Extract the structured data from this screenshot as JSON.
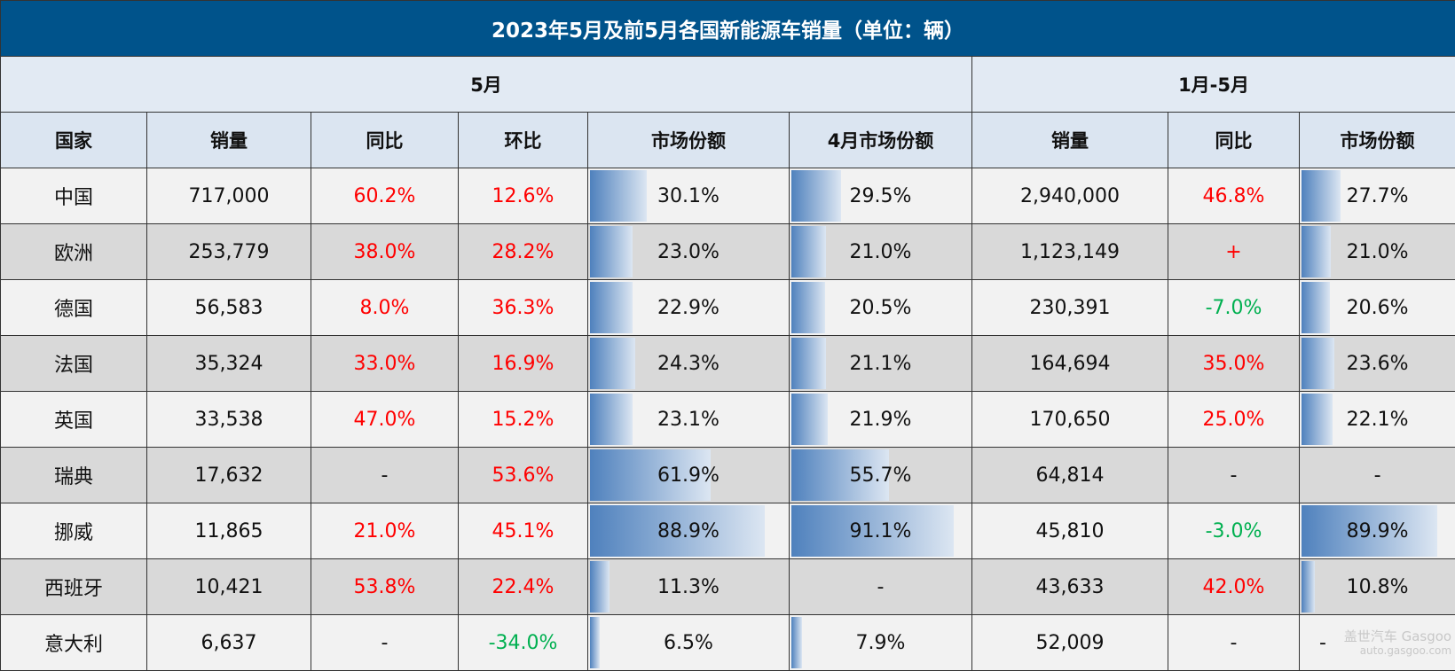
{
  "title": "2023年5月及前5月各国新能源车销量（单位：辆）",
  "group_headers": {
    "may": "5月",
    "ytd": "1月-5月"
  },
  "columns": [
    "国家",
    "销量",
    "同比",
    "环比",
    "市场份额",
    "4月市场份额",
    "销量",
    "同比",
    "市场份额"
  ],
  "colors": {
    "header_bg": "#00538b",
    "positive": "#ff0000",
    "negative": "#00b050",
    "bar_start": "#4f81bd",
    "bar_end": "#dce6f2"
  },
  "rows": [
    {
      "country": "中国",
      "sales": "717,000",
      "yoy": "60.2%",
      "mom": "12.6%",
      "share": "30.1%",
      "apr_share": "29.5%",
      "ytd_sales": "2,940,000",
      "ytd_yoy": "46.8%",
      "ytd_share": "27.7%"
    },
    {
      "country": "欧洲",
      "sales": "253,779",
      "yoy": "38.0%",
      "mom": "28.2%",
      "share": "23.0%",
      "apr_share": "21.0%",
      "ytd_sales": "1,123,149",
      "ytd_yoy": "+",
      "ytd_share": "21.0%"
    },
    {
      "country": "德国",
      "sales": "56,583",
      "yoy": "8.0%",
      "mom": "36.3%",
      "share": "22.9%",
      "apr_share": "20.5%",
      "ytd_sales": "230,391",
      "ytd_yoy": "-7.0%",
      "ytd_share": "20.6%"
    },
    {
      "country": "法国",
      "sales": "35,324",
      "yoy": "33.0%",
      "mom": "16.9%",
      "share": "24.3%",
      "apr_share": "21.1%",
      "ytd_sales": "164,694",
      "ytd_yoy": "35.0%",
      "ytd_share": "23.6%"
    },
    {
      "country": "英国",
      "sales": "33,538",
      "yoy": "47.0%",
      "mom": "15.2%",
      "share": "23.1%",
      "apr_share": "21.9%",
      "ytd_sales": "170,650",
      "ytd_yoy": "25.0%",
      "ytd_share": "22.1%"
    },
    {
      "country": "瑞典",
      "sales": "17,632",
      "yoy": "-",
      "mom": "53.6%",
      "share": "61.9%",
      "apr_share": "55.7%",
      "ytd_sales": "64,814",
      "ytd_yoy": "-",
      "ytd_share": "-"
    },
    {
      "country": "挪威",
      "sales": "11,865",
      "yoy": "21.0%",
      "mom": "45.1%",
      "share": "88.9%",
      "apr_share": "91.1%",
      "ytd_sales": "45,810",
      "ytd_yoy": "-3.0%",
      "ytd_share": "89.9%"
    },
    {
      "country": "西班牙",
      "sales": "10,421",
      "yoy": "53.8%",
      "mom": "22.4%",
      "share": "11.3%",
      "apr_share": "-",
      "ytd_sales": "43,633",
      "ytd_yoy": "42.0%",
      "ytd_share": "10.8%"
    },
    {
      "country": "意大利",
      "sales": "6,637",
      "yoy": "-",
      "mom": "-34.0%",
      "share": "6.5%",
      "apr_share": "7.9%",
      "ytd_sales": "52,009",
      "ytd_yoy": "-",
      "ytd_share": "-"
    }
  ],
  "watermark": {
    "brand": "盖世汽车 Gasgoo",
    "url": "auto.gasgoo.com"
  }
}
